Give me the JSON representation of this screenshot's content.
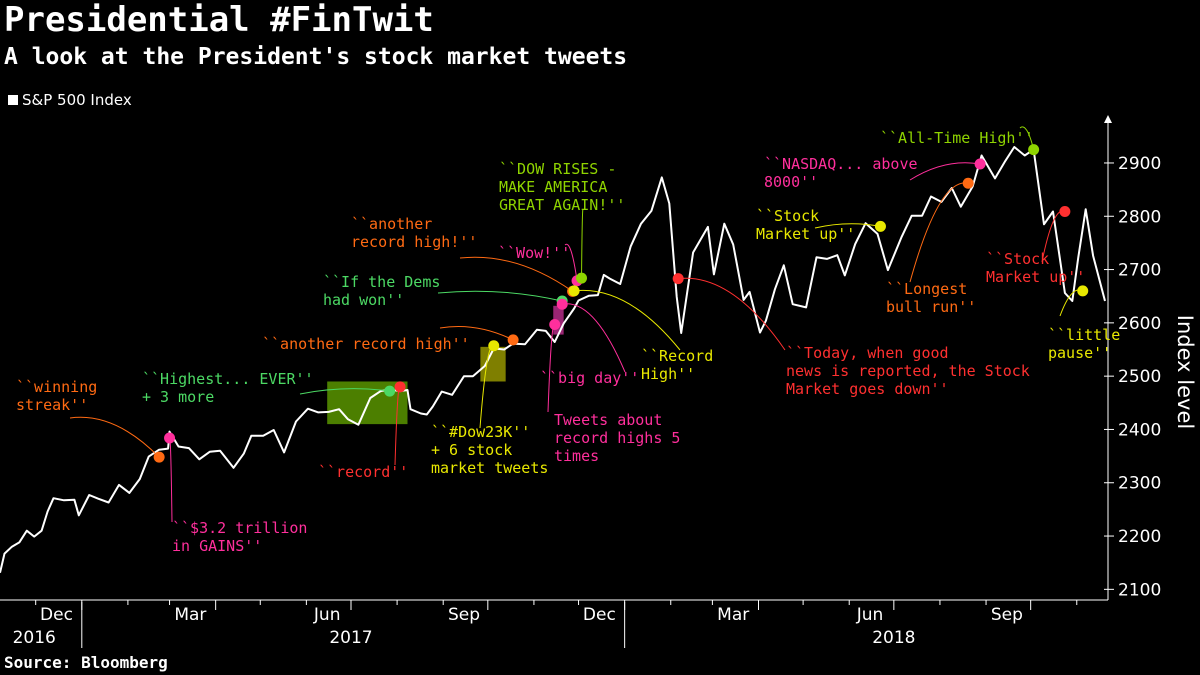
{
  "title": "Presidential #FinTwit",
  "subtitle": "A look at the President's stock market tweets",
  "source": "Source: Bloomberg",
  "chart_data": {
    "type": "line",
    "legend": [
      {
        "name": "S&P 500 Index",
        "color": "#ffffff"
      }
    ],
    "ylabel": "Index level",
    "ylim": [
      2080,
      2990
    ],
    "y_ticks": [
      2100,
      2200,
      2300,
      2400,
      2500,
      2600,
      2700,
      2800,
      2900
    ],
    "xlim": [
      "2016-11-07",
      "2018-11-22"
    ],
    "x_ticks": [
      {
        "label": "Dec",
        "date": "2016-12-15"
      },
      {
        "label": "Mar",
        "date": "2017-03-15"
      },
      {
        "label": "Jun",
        "date": "2017-06-15"
      },
      {
        "label": "Sep",
        "date": "2017-09-15"
      },
      {
        "label": "Dec",
        "date": "2017-12-15"
      },
      {
        "label": "Mar",
        "date": "2018-03-15"
      },
      {
        "label": "Jun",
        "date": "2018-06-15"
      },
      {
        "label": "Sep",
        "date": "2018-09-15"
      }
    ],
    "year_labels": [
      {
        "label": "2016",
        "date": "2016-11-30"
      },
      {
        "label": "2017",
        "date": "2017-07-01"
      },
      {
        "label": "2018",
        "date": "2018-07-01"
      }
    ],
    "series": [
      {
        "name": "S&P 500 Index",
        "color": "#ffffff",
        "points": [
          [
            "2016-11-07",
            2131
          ],
          [
            "2016-11-10",
            2167
          ],
          [
            "2016-11-15",
            2180
          ],
          [
            "2016-11-20",
            2188
          ],
          [
            "2016-11-25",
            2210
          ],
          [
            "2016-11-30",
            2199
          ],
          [
            "2016-12-05",
            2210
          ],
          [
            "2016-12-09",
            2246
          ],
          [
            "2016-12-13",
            2271
          ],
          [
            "2016-12-20",
            2267
          ],
          [
            "2016-12-27",
            2268
          ],
          [
            "2016-12-30",
            2239
          ],
          [
            "2017-01-06",
            2277
          ],
          [
            "2017-01-12",
            2270
          ],
          [
            "2017-01-19",
            2263
          ],
          [
            "2017-01-26",
            2296
          ],
          [
            "2017-02-02",
            2281
          ],
          [
            "2017-02-09",
            2307
          ],
          [
            "2017-02-15",
            2349
          ],
          [
            "2017-02-22",
            2362
          ],
          [
            "2017-02-28",
            2364
          ],
          [
            "2017-03-01",
            2396
          ],
          [
            "2017-03-07",
            2368
          ],
          [
            "2017-03-14",
            2365
          ],
          [
            "2017-03-21",
            2344
          ],
          [
            "2017-03-28",
            2358
          ],
          [
            "2017-04-04",
            2360
          ],
          [
            "2017-04-13",
            2328
          ],
          [
            "2017-04-20",
            2355
          ],
          [
            "2017-04-25",
            2388
          ],
          [
            "2017-05-03",
            2388
          ],
          [
            "2017-05-10",
            2399
          ],
          [
            "2017-05-17",
            2357
          ],
          [
            "2017-05-25",
            2415
          ],
          [
            "2017-06-02",
            2439
          ],
          [
            "2017-06-09",
            2432
          ],
          [
            "2017-06-16",
            2433
          ],
          [
            "2017-06-23",
            2438
          ],
          [
            "2017-06-29",
            2419
          ],
          [
            "2017-07-06",
            2409
          ],
          [
            "2017-07-14",
            2459
          ],
          [
            "2017-07-21",
            2472
          ],
          [
            "2017-07-27",
            2475
          ],
          [
            "2017-08-03",
            2472
          ],
          [
            "2017-08-08",
            2474
          ],
          [
            "2017-08-10",
            2438
          ],
          [
            "2017-08-17",
            2430
          ],
          [
            "2017-08-21",
            2428
          ],
          [
            "2017-08-25",
            2443
          ],
          [
            "2017-08-31",
            2471
          ],
          [
            "2017-09-07",
            2465
          ],
          [
            "2017-09-15",
            2500
          ],
          [
            "2017-09-21",
            2500
          ],
          [
            "2017-09-29",
            2519
          ],
          [
            "2017-10-05",
            2552
          ],
          [
            "2017-10-12",
            2550
          ],
          [
            "2017-10-18",
            2561
          ],
          [
            "2017-10-26",
            2560
          ],
          [
            "2017-11-03",
            2587
          ],
          [
            "2017-11-09",
            2585
          ],
          [
            "2017-11-15",
            2564
          ],
          [
            "2017-11-21",
            2599
          ],
          [
            "2017-11-28",
            2627
          ],
          [
            "2017-12-01",
            2642
          ],
          [
            "2017-12-08",
            2651
          ],
          [
            "2017-12-14",
            2652
          ],
          [
            "2017-12-18",
            2690
          ],
          [
            "2017-12-22",
            2683
          ],
          [
            "2017-12-29",
            2673
          ],
          [
            "2018-01-05",
            2743
          ],
          [
            "2018-01-12",
            2786
          ],
          [
            "2018-01-19",
            2810
          ],
          [
            "2018-01-26",
            2873
          ],
          [
            "2018-01-31",
            2824
          ],
          [
            "2018-02-05",
            2649
          ],
          [
            "2018-02-08",
            2581
          ],
          [
            "2018-02-12",
            2656
          ],
          [
            "2018-02-16",
            2732
          ],
          [
            "2018-02-26",
            2780
          ],
          [
            "2018-03-02",
            2691
          ],
          [
            "2018-03-09",
            2786
          ],
          [
            "2018-03-15",
            2747
          ],
          [
            "2018-03-22",
            2643
          ],
          [
            "2018-03-26",
            2658
          ],
          [
            "2018-04-02",
            2582
          ],
          [
            "2018-04-06",
            2604
          ],
          [
            "2018-04-12",
            2663
          ],
          [
            "2018-04-18",
            2708
          ],
          [
            "2018-04-24",
            2635
          ],
          [
            "2018-05-03",
            2629
          ],
          [
            "2018-05-10",
            2723
          ],
          [
            "2018-05-17",
            2720
          ],
          [
            "2018-05-24",
            2727
          ],
          [
            "2018-05-29",
            2689
          ],
          [
            "2018-06-05",
            2748
          ],
          [
            "2018-06-12",
            2787
          ],
          [
            "2018-06-20",
            2767
          ],
          [
            "2018-06-27",
            2699
          ],
          [
            "2018-07-06",
            2760
          ],
          [
            "2018-07-13",
            2801
          ],
          [
            "2018-07-20",
            2801
          ],
          [
            "2018-07-26",
            2837
          ],
          [
            "2018-08-02",
            2827
          ],
          [
            "2018-08-09",
            2853
          ],
          [
            "2018-08-15",
            2818
          ],
          [
            "2018-08-23",
            2856
          ],
          [
            "2018-08-29",
            2914
          ],
          [
            "2018-09-07",
            2871
          ],
          [
            "2018-09-14",
            2904
          ],
          [
            "2018-09-20",
            2930
          ],
          [
            "2018-09-27",
            2914
          ],
          [
            "2018-10-03",
            2925
          ],
          [
            "2018-10-10",
            2785
          ],
          [
            "2018-10-16",
            2809
          ],
          [
            "2018-10-24",
            2656
          ],
          [
            "2018-10-29",
            2641
          ],
          [
            "2018-11-02",
            2723
          ],
          [
            "2018-11-07",
            2813
          ],
          [
            "2018-11-12",
            2726
          ],
          [
            "2018-11-20",
            2641
          ]
        ]
      }
    ],
    "annotations": [
      {
        "lines": [
          "``winning",
          "streak''"
        ],
        "color": "#ff6a13",
        "date": "2017-02-22",
        "value": 2348
      },
      {
        "lines": [
          "``$3.2 trillion",
          "in GAINS''"
        ],
        "color": "#ff2f9c",
        "date": "2017-03-01",
        "value": 2384
      },
      {
        "lines": [
          "``Highest... EVER''",
          "+ 3 more"
        ],
        "color": "#4cd964",
        "date": "2017-07-27",
        "value": 2472
      },
      {
        "lines": [
          "``record''"
        ],
        "color": "#ff3030",
        "date": "2017-08-03",
        "value": 2480
      },
      {
        "lines": [
          "``another record high''"
        ],
        "color": "#ff6a13",
        "date": "2017-10-18",
        "value": 2568
      },
      {
        "lines": [
          "``#Dow23K''",
          "+ 6 stock",
          "market tweets"
        ],
        "color": "#e8e800",
        "date": "2017-10-05",
        "value": 2557
      },
      {
        "lines": [
          "``If the Dems",
          "had won''"
        ],
        "color": "#4cd964",
        "date": "2017-11-20",
        "value": 2641
      },
      {
        "lines": [
          "``another",
          "record high!''"
        ],
        "color": "#ff6a13",
        "date": "2017-11-27",
        "value": 2659
      },
      {
        "lines": [
          "``Wow!''"
        ],
        "color": "#ff2f9c",
        "date": "2017-11-30",
        "value": 2679
      },
      {
        "lines": [
          "``DOW RISES -",
          "MAKE AMERICA",
          "GREAT AGAIN!''"
        ],
        "color": "#8fd400",
        "date": "2017-12-03",
        "value": 2684
      },
      {
        "lines": [
          "``Record",
          "High''"
        ],
        "color": "#e8e800",
        "date": "2017-11-28",
        "value": 2660
      },
      {
        "lines": [
          "``big day''"
        ],
        "color": "#ff2f9c",
        "date": "2017-11-20",
        "value": 2635
      },
      {
        "lines": [
          "Tweets about",
          "record highs 5",
          "times"
        ],
        "color": "#ff2f9c",
        "date": "2017-11-15",
        "value": 2597
      },
      {
        "lines": [
          "``Today, when good",
          "news is reported, the Stock",
          "Market goes down''"
        ],
        "color": "#ff3030",
        "date": "2018-02-06",
        "value": 2683
      },
      {
        "lines": [
          "``Stock",
          "Market up''"
        ],
        "color": "#e8e800",
        "date": "2018-06-22",
        "value": 2781
      },
      {
        "lines": [
          "``Longest",
          "bull run''"
        ],
        "color": "#ff6a13",
        "date": "2018-08-20",
        "value": 2862
      },
      {
        "lines": [
          "``NASDAQ... above",
          "8000''"
        ],
        "color": "#ff2f9c",
        "date": "2018-08-28",
        "value": 2898
      },
      {
        "lines": [
          "``All-Time High''"
        ],
        "color": "#8fd400",
        "date": "2018-10-03",
        "value": 2925
      },
      {
        "lines": [
          "``Stock",
          "Market up''"
        ],
        "color": "#ff3030",
        "date": "2018-10-24",
        "value": 2809
      },
      {
        "lines": [
          "``little",
          "pause''"
        ],
        "color": "#e8e800",
        "date": "2018-11-05",
        "value": 2660
      }
    ]
  }
}
